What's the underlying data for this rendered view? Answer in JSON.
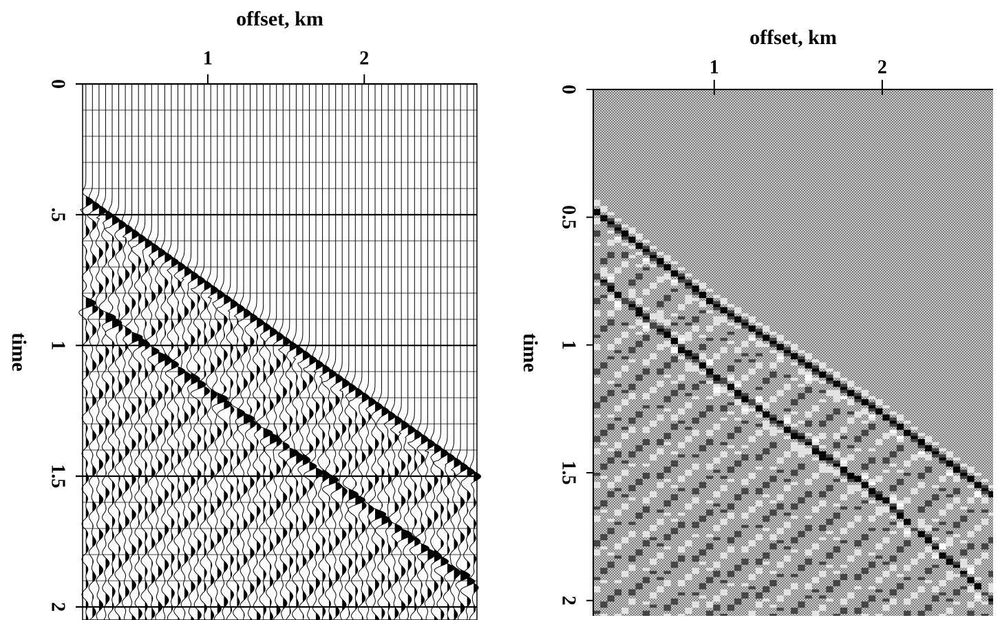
{
  "chart_data": [
    {
      "type": "wiggle",
      "title": "offset, km",
      "ylabel": "time",
      "xlim": [
        0.2,
        2.72
      ],
      "xticks": [
        1,
        2
      ],
      "ylim": [
        0,
        2.05
      ],
      "yticks": [
        0,
        {
          "value": 0.5,
          "label": ".5"
        },
        1,
        1.5,
        2
      ],
      "color": "#000000",
      "series": [
        {
          "x": [
            0.2,
            2.72
          ],
          "values": [
            0.44,
            1.51
          ]
        },
        {
          "x": [
            0.2,
            2.72
          ],
          "values": [
            0.83,
            1.93
          ]
        }
      ]
    },
    {
      "type": "raster",
      "title": "offset, km",
      "ylabel": "time",
      "xlim": [
        0.28,
        2.66
      ],
      "xticks": [
        1,
        2
      ],
      "ylim": [
        0,
        2.06
      ],
      "yticks": [
        0,
        0.5,
        1,
        1.5,
        2
      ],
      "color": "#9a9a9a",
      "series": [
        {
          "x": [
            0.28,
            1,
            2,
            2.66
          ],
          "values": [
            0.47,
            0.84,
            1.27,
            1.59
          ]
        },
        {
          "x": [
            0.28,
            1,
            2,
            2.66
          ],
          "values": [
            0.72,
            1.12,
            1.6,
            2.0
          ]
        }
      ]
    }
  ]
}
